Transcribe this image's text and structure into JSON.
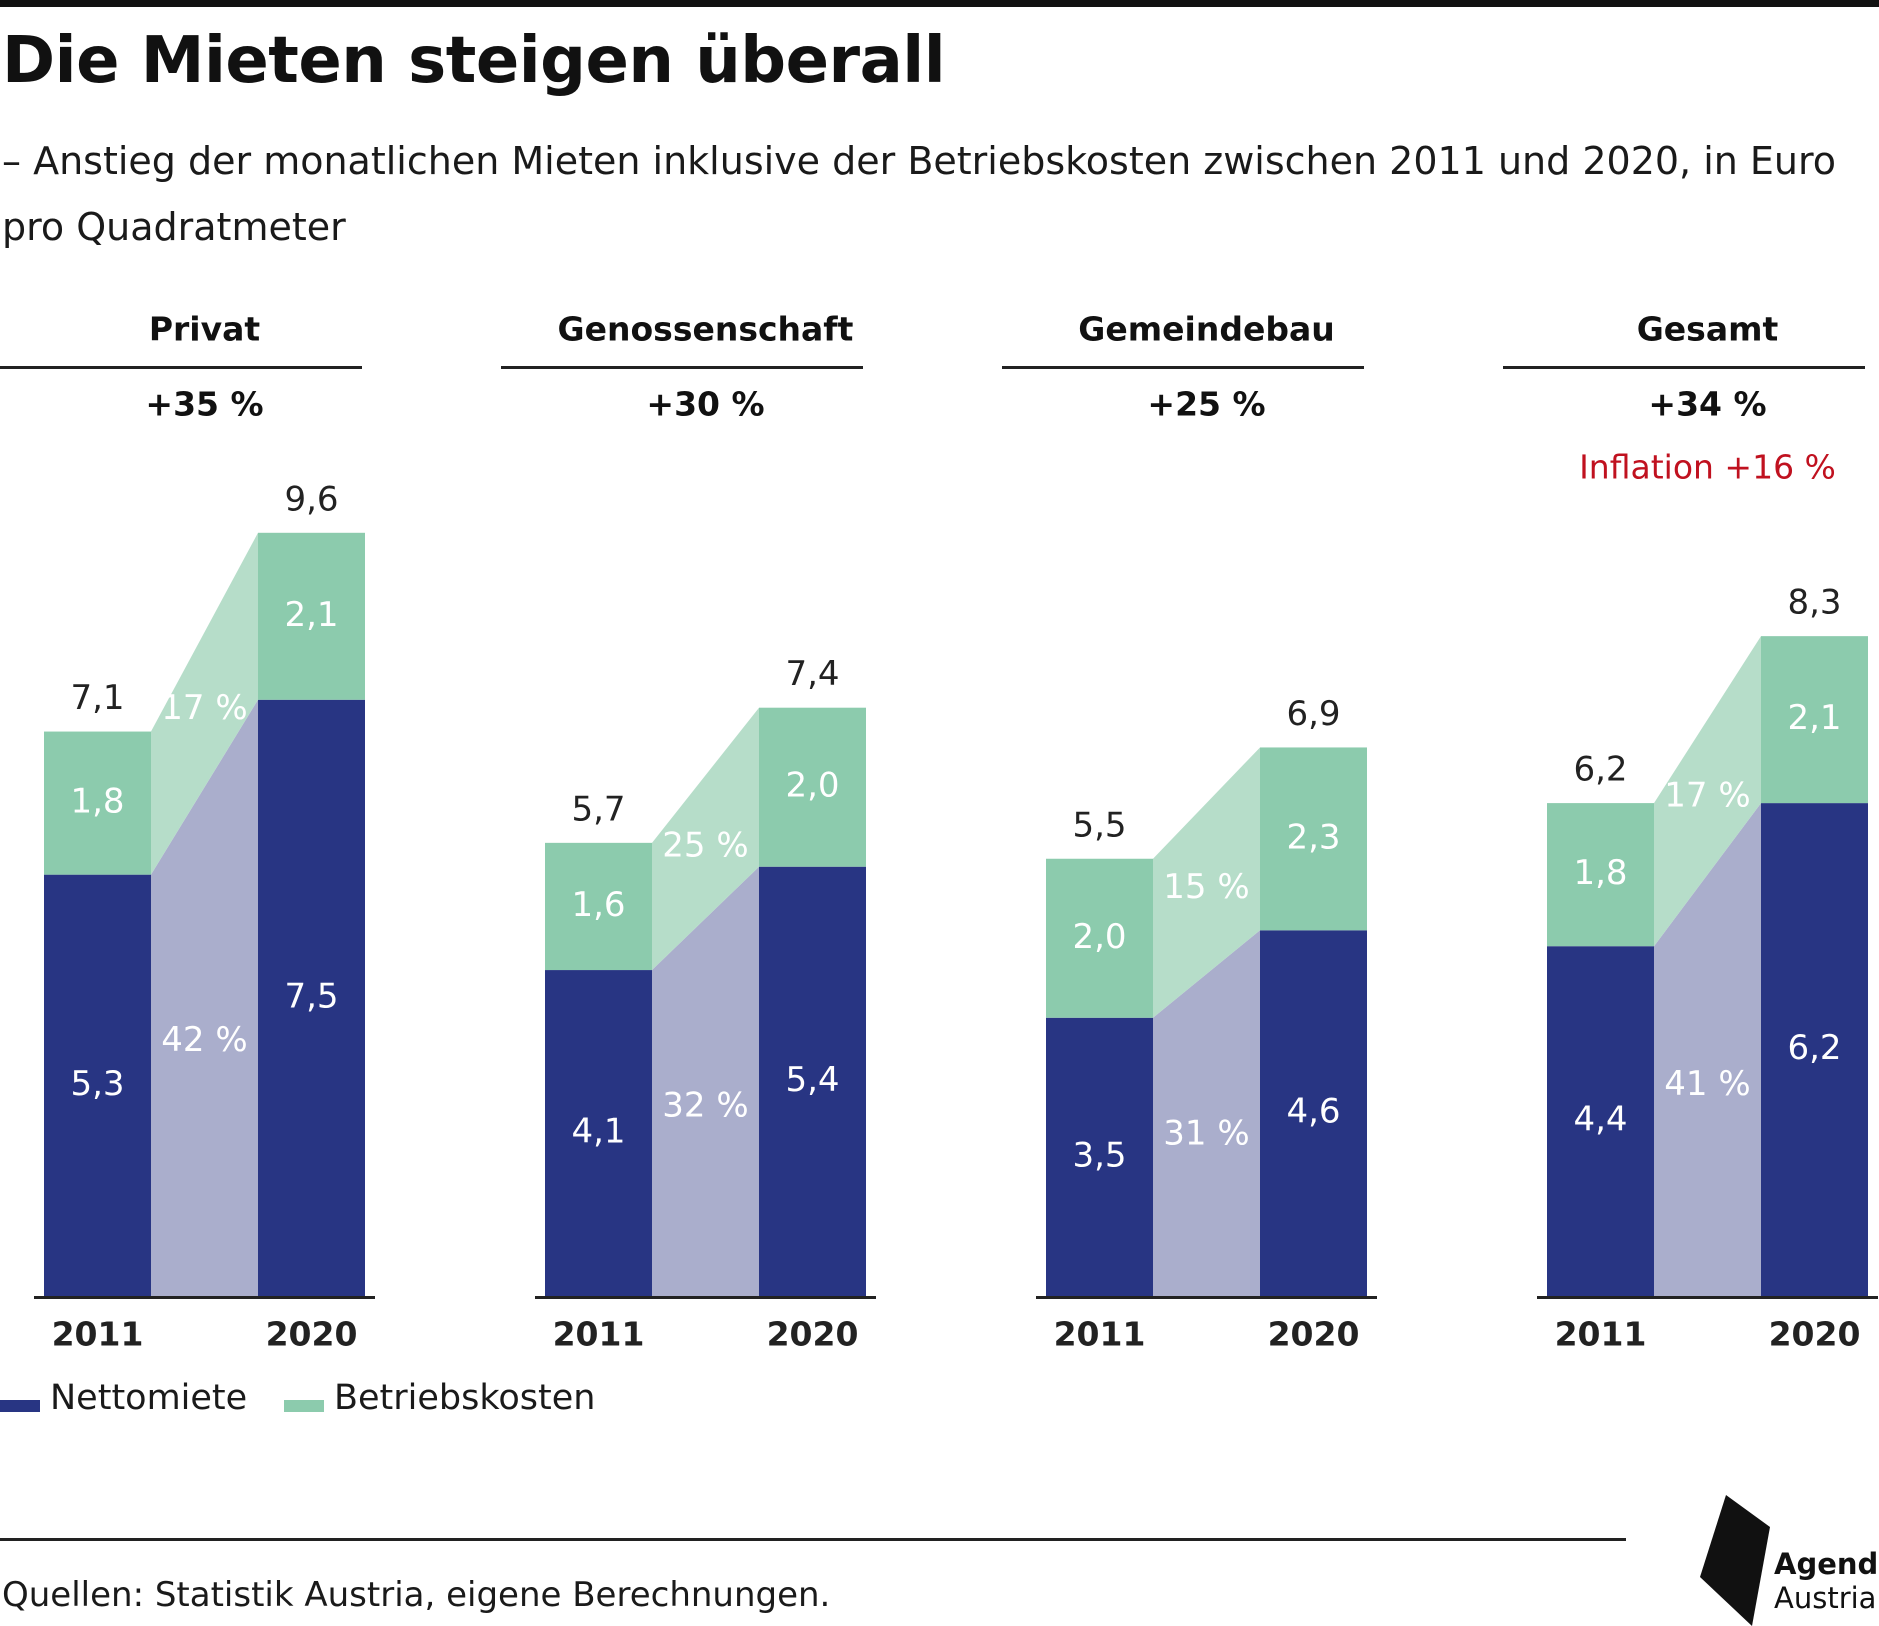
{
  "header": {
    "title": "Die Mieten steigen überall",
    "subtitle": "– Anstieg der monatlichen Mieten inklusive der Betriebskosten zwischen 2011 und 2020, in Euro pro Quadratmeter"
  },
  "chart_data": {
    "type": "bar",
    "stacked": true,
    "unit": "Euro pro Quadratmeter",
    "x": [
      "2011",
      "2020"
    ],
    "ylim": [
      0,
      9.6
    ],
    "grid": false,
    "legend_position": "bottom-left",
    "colors": {
      "Nettomiete": "#283583",
      "Betriebskosten": "#8ccbad",
      "Nettomiete_band": "#aaaecc",
      "Betriebskosten_band": "#b6ddc9",
      "inflation": "#c0111f"
    },
    "panels": [
      {
        "name": "Privat",
        "change": "+35 %",
        "Nettomiete": [
          5.3,
          7.5
        ],
        "Betriebskosten": [
          1.8,
          2.1
        ],
        "totals": [
          7.1,
          9.6
        ],
        "band_labels": {
          "Betriebskosten": "17 %",
          "Nettomiete": "42 %"
        }
      },
      {
        "name": "Genossenschaft",
        "change": "+30 %",
        "Nettomiete": [
          4.1,
          5.4
        ],
        "Betriebskosten": [
          1.6,
          2.0
        ],
        "totals": [
          5.7,
          7.4
        ],
        "band_labels": {
          "Betriebskosten": "25 %",
          "Nettomiete": "32 %"
        }
      },
      {
        "name": "Gemeindebau",
        "change": "+25 %",
        "Nettomiete": [
          3.5,
          4.6
        ],
        "Betriebskosten": [
          2.0,
          2.3
        ],
        "totals": [
          5.5,
          6.9
        ],
        "band_labels": {
          "Betriebskosten": "15 %",
          "Nettomiete": "31 %"
        }
      },
      {
        "name": "Gesamt",
        "change": "+34 %",
        "note": "Inflation +16 %",
        "Nettomiete": [
          4.4,
          6.2
        ],
        "Betriebskosten": [
          1.8,
          2.1
        ],
        "totals": [
          6.2,
          8.3
        ],
        "band_labels": {
          "Betriebskosten": "17 %",
          "Nettomiete": "41 %"
        }
      }
    ]
  },
  "legend": {
    "items": [
      {
        "label": "Nettomiete",
        "color": "#283583"
      },
      {
        "label": "Betriebskosten",
        "color": "#8ccbad"
      }
    ]
  },
  "footer": {
    "source": "Quellen: Statistik Austria, eigene Berechnungen.",
    "logo_line1": "Agenda",
    "logo_line2": "Austria"
  }
}
